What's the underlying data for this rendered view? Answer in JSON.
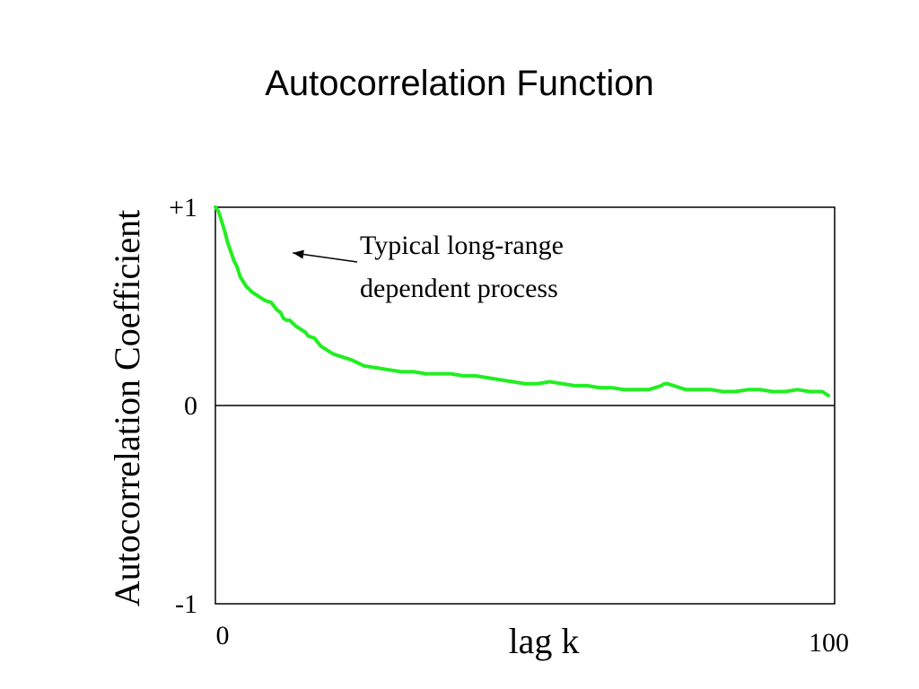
{
  "chart_data": {
    "type": "line",
    "title": "Autocorrelation Function",
    "xlabel": "lag k",
    "ylabel": "Autocorrelation Coefficient",
    "xlim": [
      0,
      100
    ],
    "ylim": [
      -1,
      1
    ],
    "x_tick_labels": [
      {
        "value": 0,
        "label": "0"
      },
      {
        "value": 100,
        "label": "100"
      }
    ],
    "y_tick_labels": [
      {
        "value": 1,
        "label": "+1"
      },
      {
        "value": 0,
        "label": "0"
      },
      {
        "value": -1,
        "label": "-1"
      }
    ],
    "grid": false,
    "zero_line": true,
    "annotation": {
      "lines": [
        "Typical long-range",
        "dependent process"
      ],
      "points_to": {
        "x": 12.5,
        "y": 0.77
      }
    },
    "series": [
      {
        "color": "#22ee22",
        "x": [
          0,
          0.5,
          1,
          1.5,
          2,
          3,
          3.5,
          4,
          5,
          6,
          6.5,
          7,
          8,
          9,
          10,
          10.5,
          11,
          11.5,
          12,
          13,
          14,
          14.5,
          15,
          16,
          17,
          18,
          19,
          20,
          22,
          24,
          26,
          28,
          30,
          32,
          34,
          36,
          38,
          40,
          42,
          44,
          46,
          48,
          50,
          52,
          54,
          56,
          58,
          60,
          62,
          64,
          66,
          68,
          70,
          72,
          72.5,
          73,
          74,
          75,
          76,
          78,
          80,
          82,
          84,
          86,
          88,
          90,
          92,
          94,
          96,
          98,
          99
        ],
        "y": [
          1.0,
          0.98,
          0.93,
          0.88,
          0.82,
          0.73,
          0.7,
          0.65,
          0.6,
          0.57,
          0.56,
          0.55,
          0.53,
          0.52,
          0.48,
          0.47,
          0.44,
          0.43,
          0.43,
          0.4,
          0.38,
          0.37,
          0.35,
          0.34,
          0.3,
          0.28,
          0.26,
          0.25,
          0.23,
          0.2,
          0.19,
          0.18,
          0.17,
          0.17,
          0.16,
          0.16,
          0.16,
          0.15,
          0.15,
          0.14,
          0.13,
          0.12,
          0.11,
          0.11,
          0.12,
          0.11,
          0.1,
          0.1,
          0.09,
          0.09,
          0.08,
          0.08,
          0.08,
          0.1,
          0.11,
          0.11,
          0.1,
          0.09,
          0.08,
          0.08,
          0.08,
          0.07,
          0.07,
          0.08,
          0.08,
          0.07,
          0.07,
          0.08,
          0.07,
          0.07,
          0.05
        ]
      }
    ]
  }
}
